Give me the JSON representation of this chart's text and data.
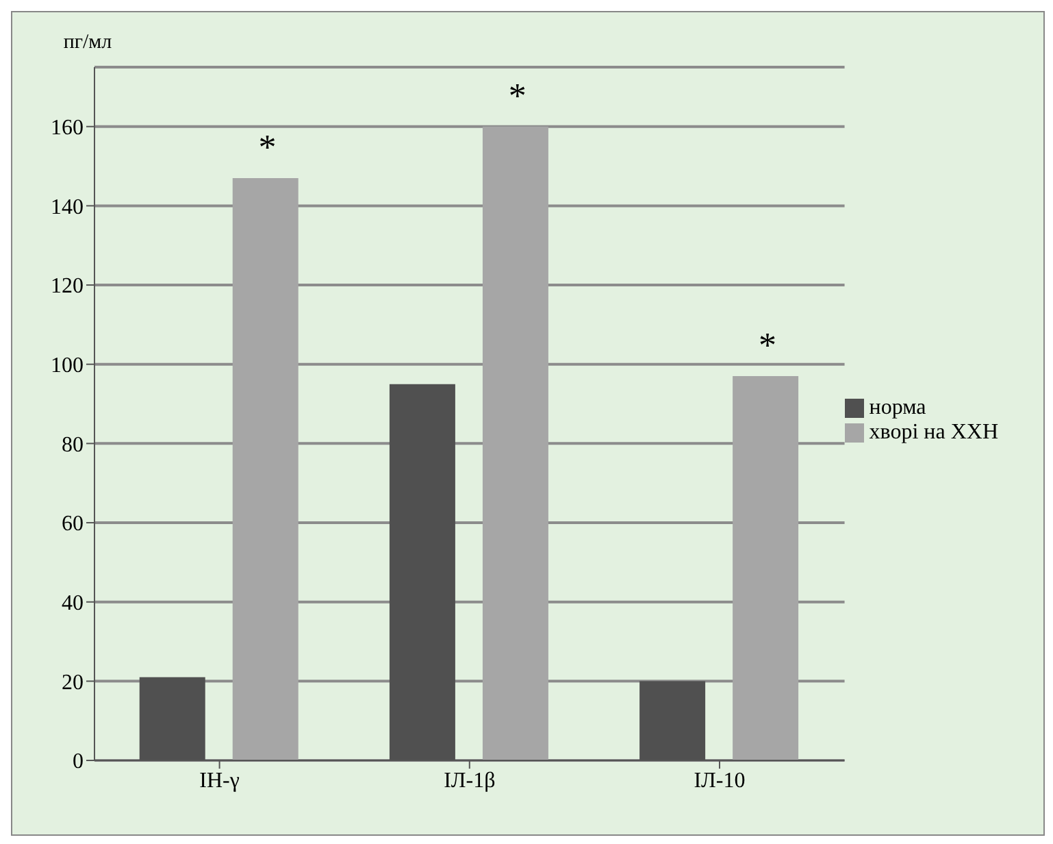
{
  "chart_data": {
    "type": "bar",
    "ylabel": "пг/мл",
    "categories": [
      "ІН-γ",
      "ІЛ-1β",
      "ІЛ-10"
    ],
    "series": [
      {
        "name": "норма",
        "color": "#505050",
        "values": [
          21,
          95,
          20
        ]
      },
      {
        "name": "хворі на ХХН",
        "color": "#a6a6a6",
        "values": [
          147,
          160,
          97
        ]
      }
    ],
    "ylim": [
      0,
      175
    ],
    "yticks": [
      0,
      20,
      40,
      60,
      80,
      100,
      120,
      140,
      160
    ],
    "grid": "y",
    "legend": "right",
    "annotations": [
      "*",
      "*",
      "*"
    ]
  }
}
